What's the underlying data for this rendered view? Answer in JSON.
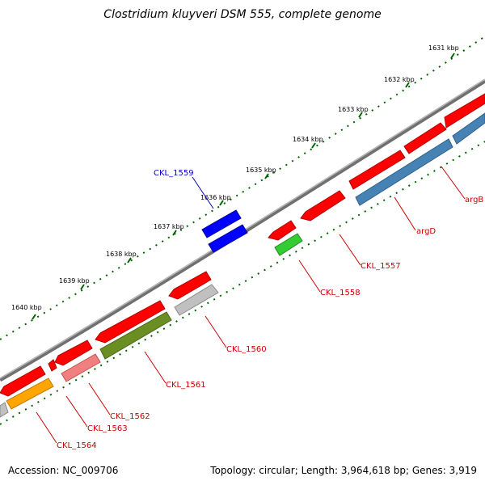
{
  "title": "Clostridium kluyveri DSM 555, complete genome",
  "footer": {
    "accession_label": "Accession:",
    "accession": "NC_009706",
    "topology_label": "Topology:",
    "topology": "circular",
    "length_label": "Length:",
    "length": "3,964,618 bp",
    "genes_label": "Genes:",
    "genes": "3,919"
  },
  "ticks": [
    "1631 kbp",
    "1632 kbp",
    "1633 kbp",
    "1634 kbp",
    "1635 kbp",
    "1636 kbp",
    "1637 kbp",
    "1638 kbp",
    "1639 kbp",
    "1640 kbp"
  ],
  "genes": [
    {
      "name": "argB",
      "color": "#cc0000"
    },
    {
      "name": "argD",
      "color": "#cc0000"
    },
    {
      "name": "CKL_1557",
      "color": "#cc0000"
    },
    {
      "name": "CKL_1558",
      "color": "#cc0000"
    },
    {
      "name": "CKL_1559",
      "color": "#0000cc"
    },
    {
      "name": "CKL_1560",
      "color": "#cc0000"
    },
    {
      "name": "CKL_1561",
      "color": "#cc0000"
    },
    {
      "name": "CKL_1562",
      "color": "#cc0000"
    },
    {
      "name": "CKL_1563",
      "color": "#cc0000"
    },
    {
      "name": "CKL_1564",
      "color": "#cc0000"
    }
  ],
  "colors": {
    "backbone": "#808080",
    "forward_cds": "#ff0000",
    "blue_cds": "#0000ff",
    "steel_cds": "#4682b4",
    "green_cds": "#33cc33",
    "olive_cds": "#6b8e23",
    "gray_cds": "#c0c0c0",
    "pink_cds": "#f08080",
    "orange_cds": "#ffa500",
    "tick": "#006400"
  }
}
